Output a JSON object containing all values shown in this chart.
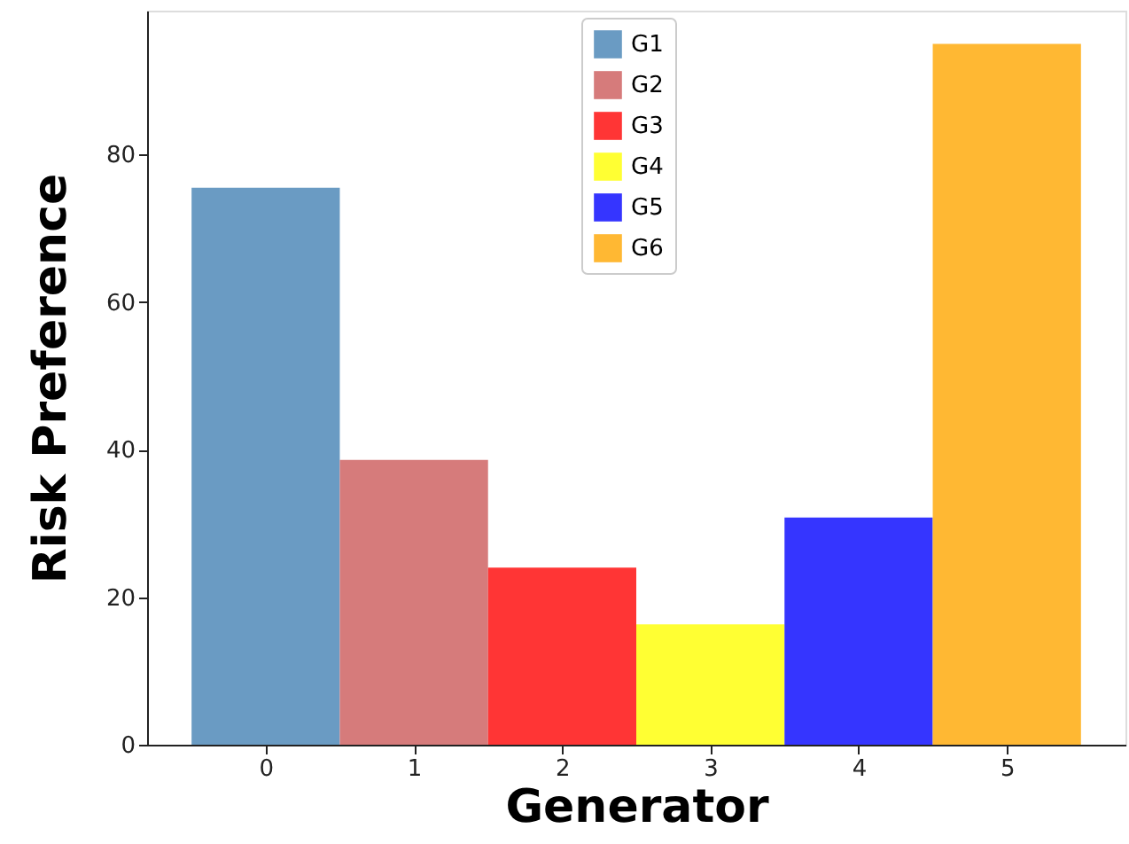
{
  "chart_data": {
    "type": "bar",
    "xlabel": "Generator",
    "ylabel": "Risk Preference",
    "xlim": [
      -0.8,
      5.8
    ],
    "xticks": [
      0,
      1,
      2,
      3,
      4,
      5
    ],
    "ylim": [
      0,
      99.5
    ],
    "yticks": [
      0,
      20,
      40,
      60,
      80
    ],
    "series": [
      {
        "name": "G1",
        "color": "#6a9bc3",
        "x": [
          0
        ],
        "values": [
          75.5
        ]
      },
      {
        "name": "G2",
        "color": "#d67b7b",
        "x": [
          1
        ],
        "values": [
          38.6
        ]
      },
      {
        "name": "G3",
        "color": "#ff3535",
        "x": [
          2
        ],
        "values": [
          24.0
        ]
      },
      {
        "name": "G4",
        "color": "#ffff33",
        "x": [
          3
        ],
        "values": [
          16.3
        ]
      },
      {
        "name": "G5",
        "color": "#3535ff",
        "x": [
          4
        ],
        "values": [
          30.8
        ]
      },
      {
        "name": "G6",
        "color": "#ffb833",
        "x": [
          5
        ],
        "values": [
          95.0
        ]
      }
    ],
    "grid": false,
    "legend": "top"
  }
}
